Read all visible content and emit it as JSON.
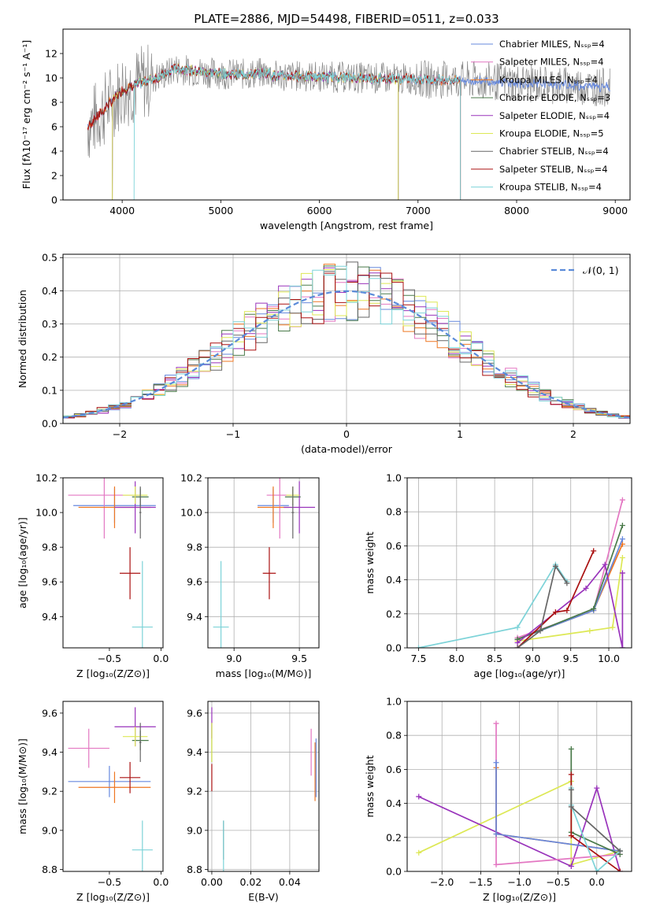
{
  "page_title": "PLATE=2886, MJD=54498, FIBERID=0511, z=0.033",
  "colors": {
    "cmiles": "#6688dd",
    "smiles": "#e377c2",
    "kmiles": "#ee7722",
    "celodie": "#4a7a4a",
    "selodie": "#9933bb",
    "kelodie": "#dde855",
    "cstelib": "#666666",
    "sstelib": "#aa1111",
    "kstelib": "#7dd3d8",
    "obs": "#888888",
    "gauss": "#5b8bd9"
  },
  "chart_data": [
    {
      "id": "spectrum",
      "type": "line",
      "title": "PLATE=2886, MJD=54498, FIBERID=0511, z=0.033",
      "xlabel": "wavelength [Angstrom, rest frame]",
      "ylabel": "Flux [fλ10⁻¹⁷ erg cm⁻² s⁻¹ A⁻¹]",
      "xlim": [
        3400,
        9150
      ],
      "ylim": [
        0,
        14
      ],
      "grid": false,
      "legend": "upper right",
      "xticks": [
        4000,
        5000,
        6000,
        7000,
        8000,
        9000
      ],
      "yticks": [
        0,
        2,
        4,
        6,
        8,
        10,
        12
      ],
      "series": [
        {
          "name": "Chabrier MILES, Nₛₛₚ=4",
          "key": "cmiles",
          "range": [
            3650,
            8950
          ]
        },
        {
          "name": "Salpeter MILES, Nₛₛₚ=4",
          "key": "smiles",
          "range": [
            3650,
            7430
          ]
        },
        {
          "name": "Kroupa MILES, Nₛₛₚ=4",
          "key": "kmiles",
          "range": [
            3650,
            7430
          ]
        },
        {
          "name": "Chabrier ELODIE, Nₛₛₚ=3",
          "key": "celodie",
          "range": [
            3900,
            6800
          ]
        },
        {
          "name": "Salpeter ELODIE, Nₛₛₚ=4",
          "key": "selodie",
          "range": [
            3900,
            6800
          ]
        },
        {
          "name": "Kroupa ELODIE, Nₛₛₚ=5",
          "key": "kelodie",
          "range": [
            3900,
            6800
          ]
        },
        {
          "name": "Chabrier STELIB, Nₛₛₚ=4",
          "key": "cstelib",
          "range": [
            3650,
            7430
          ]
        },
        {
          "name": "Salpeter STELIB, Nₛₛₚ=4",
          "key": "sstelib",
          "range": [
            3650,
            7430
          ]
        },
        {
          "name": "Kroupa STELIB, Nₛₛₚ=4",
          "key": "kstelib",
          "range": [
            4120,
            7430
          ]
        }
      ]
    },
    {
      "id": "residuals",
      "type": "line",
      "xlabel": "(data-model)/error",
      "ylabel": "Normed distribution",
      "xlim": [
        -2.5,
        2.5
      ],
      "ylim": [
        0,
        0.51
      ],
      "grid": true,
      "legend": "upper right",
      "xticks": [
        -2,
        -1,
        0,
        1,
        2
      ],
      "yticks": [
        0.0,
        0.1,
        0.2,
        0.3,
        0.4,
        0.5
      ],
      "gauss_label": "𝒩(0, 1)",
      "hist_keys": [
        "cmiles",
        "smiles",
        "kmiles",
        "celodie",
        "selodie",
        "kelodie",
        "cstelib",
        "sstelib",
        "kstelib"
      ]
    },
    {
      "id": "age_z",
      "type": "scatter",
      "xlabel": "Z [log₁₀(Z/Z⊙)]",
      "ylabel": "age  [log₁₀(age/yr)]",
      "xlim": [
        -0.95,
        0.02
      ],
      "ylim": [
        9.22,
        10.2
      ],
      "grid": false,
      "xticks": [
        -0.5,
        0.0
      ],
      "yticks": [
        9.4,
        9.6,
        9.8,
        10.0,
        10.2
      ],
      "points": [
        {
          "key": "cmiles",
          "x": -0.45,
          "y": 10.04,
          "ex": 0.4,
          "ey": 0.1
        },
        {
          "key": "smiles",
          "x": -0.55,
          "y": 10.1,
          "ex": 0.35,
          "ey": 0.25
        },
        {
          "key": "kmiles",
          "x": -0.45,
          "y": 10.03,
          "ex": 0.35,
          "ey": 0.12
        },
        {
          "key": "celodie",
          "x": -0.2,
          "y": 10.09,
          "ex": 0.08,
          "ey": 0.05
        },
        {
          "key": "selodie",
          "x": -0.25,
          "y": 10.03,
          "ex": 0.2,
          "ey": 0.15
        },
        {
          "key": "kelodie",
          "x": -0.25,
          "y": 10.1,
          "ex": 0.12,
          "ey": 0.05
        },
        {
          "key": "cstelib",
          "x": -0.2,
          "y": 10.0,
          "ex": 0.01,
          "ey": 0.15
        },
        {
          "key": "sstelib",
          "x": -0.3,
          "y": 9.65,
          "ex": 0.1,
          "ey": 0.15
        },
        {
          "key": "kstelib",
          "x": -0.18,
          "y": 9.34,
          "ex": 0.1,
          "ey": 0.38
        }
      ]
    },
    {
      "id": "age_mass",
      "type": "scatter",
      "xlabel": "mass [log₁₀(M/M⊙)]",
      "ylabel": "",
      "xlim": [
        8.8,
        9.65
      ],
      "ylim": [
        9.22,
        10.2
      ],
      "grid": true,
      "xticks": [
        9.0,
        9.5
      ],
      "yticks": [
        9.4,
        9.6,
        9.8,
        10.0,
        10.2
      ],
      "points": [
        {
          "key": "cmiles",
          "x": 9.3,
          "y": 10.04,
          "ex": 0.12,
          "ey": 0.1
        },
        {
          "key": "smiles",
          "x": 9.35,
          "y": 10.1,
          "ex": 0.1,
          "ey": 0.25
        },
        {
          "key": "kmiles",
          "x": 9.3,
          "y": 10.03,
          "ex": 0.12,
          "ey": 0.12
        },
        {
          "key": "celodie",
          "x": 9.45,
          "y": 10.09,
          "ex": 0.06,
          "ey": 0.05
        },
        {
          "key": "selodie",
          "x": 9.5,
          "y": 10.03,
          "ex": 0.12,
          "ey": 0.15
        },
        {
          "key": "kelodie",
          "x": 9.45,
          "y": 10.1,
          "ex": 0.05,
          "ey": 0.05
        },
        {
          "key": "cstelib",
          "x": 9.45,
          "y": 10.0,
          "ex": 0.01,
          "ey": 0.15
        },
        {
          "key": "sstelib",
          "x": 9.27,
          "y": 9.65,
          "ex": 0.05,
          "ey": 0.15
        },
        {
          "key": "kstelib",
          "x": 8.9,
          "y": 9.34,
          "ex": 0.06,
          "ey": 0.38
        }
      ]
    },
    {
      "id": "weights_age",
      "type": "line",
      "xlabel": "age  [log₁₀(age/yr)]",
      "ylabel": "mass weight",
      "xlim": [
        7.35,
        10.3
      ],
      "ylim": [
        0,
        1
      ],
      "grid": true,
      "xticks": [
        7.5,
        8.0,
        8.5,
        9.0,
        9.5,
        10.0
      ],
      "yticks": [
        0.0,
        0.2,
        0.4,
        0.6,
        0.8,
        1.0
      ],
      "series": [
        {
          "key": "kelodie",
          "x": [
            8.8,
            9.75,
            10.05,
            10.18
          ],
          "y": [
            0.04,
            0.1,
            0.12,
            0.53
          ]
        },
        {
          "key": "smiles",
          "x": [
            8.8,
            9.8,
            10.18
          ],
          "y": [
            0.06,
            0.22,
            0.87
          ]
        },
        {
          "key": "kmiles",
          "x": [
            8.8,
            9.8,
            10.18
          ],
          "y": [
            0.05,
            0.22,
            0.61
          ]
        },
        {
          "key": "cmiles",
          "x": [
            8.8,
            9.8,
            10.18
          ],
          "y": [
            0.05,
            0.22,
            0.64
          ]
        },
        {
          "key": "celodie",
          "x": [
            8.8,
            9.8,
            10.18
          ],
          "y": [
            0.05,
            0.23,
            0.72
          ]
        },
        {
          "key": "selodie",
          "x": [
            8.8,
            9.7,
            9.95,
            10.18
          ],
          "y": [
            0.03,
            0.35,
            0.49,
            0.0
          ]
        },
        {
          "key": "selodie",
          "x": [
            10.18,
            10.18
          ],
          "y": [
            0.0,
            0.44
          ]
        },
        {
          "key": "sstelib",
          "x": [
            8.8,
            9.3,
            9.45,
            9.8
          ],
          "y": [
            0.0,
            0.21,
            0.22,
            0.57
          ]
        },
        {
          "key": "kstelib",
          "x": [
            7.5,
            8.8,
            9.3,
            9.45
          ],
          "y": [
            0.0,
            0.12,
            0.49,
            0.39
          ]
        },
        {
          "key": "cstelib",
          "x": [
            8.8,
            9.1,
            9.3,
            9.45
          ],
          "y": [
            0.0,
            0.1,
            0.48,
            0.38
          ]
        }
      ]
    },
    {
      "id": "mass_z",
      "type": "scatter",
      "xlabel": "Z [log₁₀(Z/Z⊙)]",
      "ylabel": "mass [log₁₀(M/M⊙)]",
      "xlim": [
        -0.95,
        0.02
      ],
      "ylim": [
        8.79,
        9.66
      ],
      "grid": false,
      "xticks": [
        -0.5,
        0.0
      ],
      "yticks": [
        8.8,
        9.0,
        9.2,
        9.4,
        9.6
      ],
      "points": [
        {
          "key": "cmiles",
          "x": -0.5,
          "y": 9.25,
          "ex": 0.4,
          "ey": 0.08
        },
        {
          "key": "smiles",
          "x": -0.7,
          "y": 9.42,
          "ex": 0.2,
          "ey": 0.1
        },
        {
          "key": "kmiles",
          "x": -0.45,
          "y": 9.22,
          "ex": 0.35,
          "ey": 0.08
        },
        {
          "key": "celodie",
          "x": -0.2,
          "y": 9.46,
          "ex": 0.08,
          "ey": 0.05
        },
        {
          "key": "selodie",
          "x": -0.25,
          "y": 9.53,
          "ex": 0.2,
          "ey": 0.1
        },
        {
          "key": "kelodie",
          "x": -0.25,
          "y": 9.48,
          "ex": 0.12,
          "ey": 0.05
        },
        {
          "key": "cstelib",
          "x": -0.2,
          "y": 9.45,
          "ex": 0.01,
          "ey": 0.1
        },
        {
          "key": "sstelib",
          "x": -0.3,
          "y": 9.27,
          "ex": 0.1,
          "ey": 0.08
        },
        {
          "key": "kstelib",
          "x": -0.18,
          "y": 8.9,
          "ex": 0.1,
          "ey": 0.15
        }
      ]
    },
    {
      "id": "mass_ebv",
      "type": "scatter",
      "xlabel": "E(B-V)",
      "ylabel": "",
      "xlim": [
        -0.002,
        0.055
      ],
      "ylim": [
        8.79,
        9.66
      ],
      "grid": true,
      "xticks": [
        0.0,
        0.02,
        0.04
      ],
      "yticks": [
        8.8,
        9.0,
        9.2,
        9.4,
        9.6
      ],
      "points": [
        {
          "key": "smiles",
          "x": 0.051,
          "y": 9.4,
          "ex": 0.0,
          "ey": 0.12
        },
        {
          "key": "kmiles",
          "x": 0.053,
          "y": 9.3,
          "ex": 0.0,
          "ey": 0.15
        },
        {
          "key": "cmiles",
          "x": 0.0535,
          "y": 9.32,
          "ex": 0.0,
          "ey": 0.15
        },
        {
          "key": "celodie",
          "x": 0.0,
          "y": 9.45,
          "ex": 0.0,
          "ey": 0.1
        },
        {
          "key": "selodie",
          "x": 0.0,
          "y": 9.55,
          "ex": 0.0,
          "ey": 0.08
        },
        {
          "key": "kelodie",
          "x": 0.0,
          "y": 9.45,
          "ex": 0.0,
          "ey": 0.1
        },
        {
          "key": "sstelib",
          "x": 0.0,
          "y": 9.27,
          "ex": 0.0,
          "ey": 0.07
        },
        {
          "key": "cstelib",
          "x": 0.006,
          "y": 8.95,
          "ex": 0.0,
          "ey": 0.1
        },
        {
          "key": "kstelib",
          "x": 0.006,
          "y": 8.9,
          "ex": 0.0,
          "ey": 0.15
        }
      ]
    },
    {
      "id": "weights_z",
      "type": "line",
      "xlabel": "Z [log₁₀(Z/Z⊙)]",
      "ylabel": "mass weight",
      "xlim": [
        -2.45,
        0.45
      ],
      "ylim": [
        0,
        1
      ],
      "grid": true,
      "xticks": [
        -2.0,
        -1.5,
        -1.0,
        -0.5,
        0.0
      ],
      "yticks": [
        0.0,
        0.2,
        0.4,
        0.6,
        0.8,
        1.0
      ],
      "series": [
        {
          "key": "kelodie",
          "x": [
            -2.3,
            -0.33,
            -0.33,
            0.3
          ],
          "y": [
            0.11,
            0.53,
            0.04,
            0.12
          ]
        },
        {
          "key": "selodie",
          "x": [
            -2.3,
            -0.33,
            0.0,
            0.3
          ],
          "y": [
            0.44,
            0.03,
            0.49,
            0.0
          ]
        },
        {
          "key": "smiles",
          "x": [
            -1.3,
            -1.3,
            0.3
          ],
          "y": [
            0.87,
            0.04,
            0.1
          ]
        },
        {
          "key": "kmiles",
          "x": [
            -1.3,
            -1.3,
            0.3
          ],
          "y": [
            0.61,
            0.22,
            0.12
          ]
        },
        {
          "key": "cmiles",
          "x": [
            -1.3,
            -1.3,
            0.3
          ],
          "y": [
            0.64,
            0.22,
            0.12
          ]
        },
        {
          "key": "celodie",
          "x": [
            -0.33,
            -0.33,
            0.3
          ],
          "y": [
            0.72,
            0.23,
            0.1
          ]
        },
        {
          "key": "sstelib",
          "x": [
            -0.33,
            -0.33,
            0.3
          ],
          "y": [
            0.57,
            0.21,
            0.0
          ]
        },
        {
          "key": "kstelib",
          "x": [
            -0.33,
            -0.33,
            0.0,
            0.3
          ],
          "y": [
            0.49,
            0.39,
            0.0,
            0.12
          ]
        },
        {
          "key": "cstelib",
          "x": [
            -0.33,
            -0.33,
            0.3
          ],
          "y": [
            0.48,
            0.38,
            0.12
          ]
        }
      ]
    }
  ]
}
